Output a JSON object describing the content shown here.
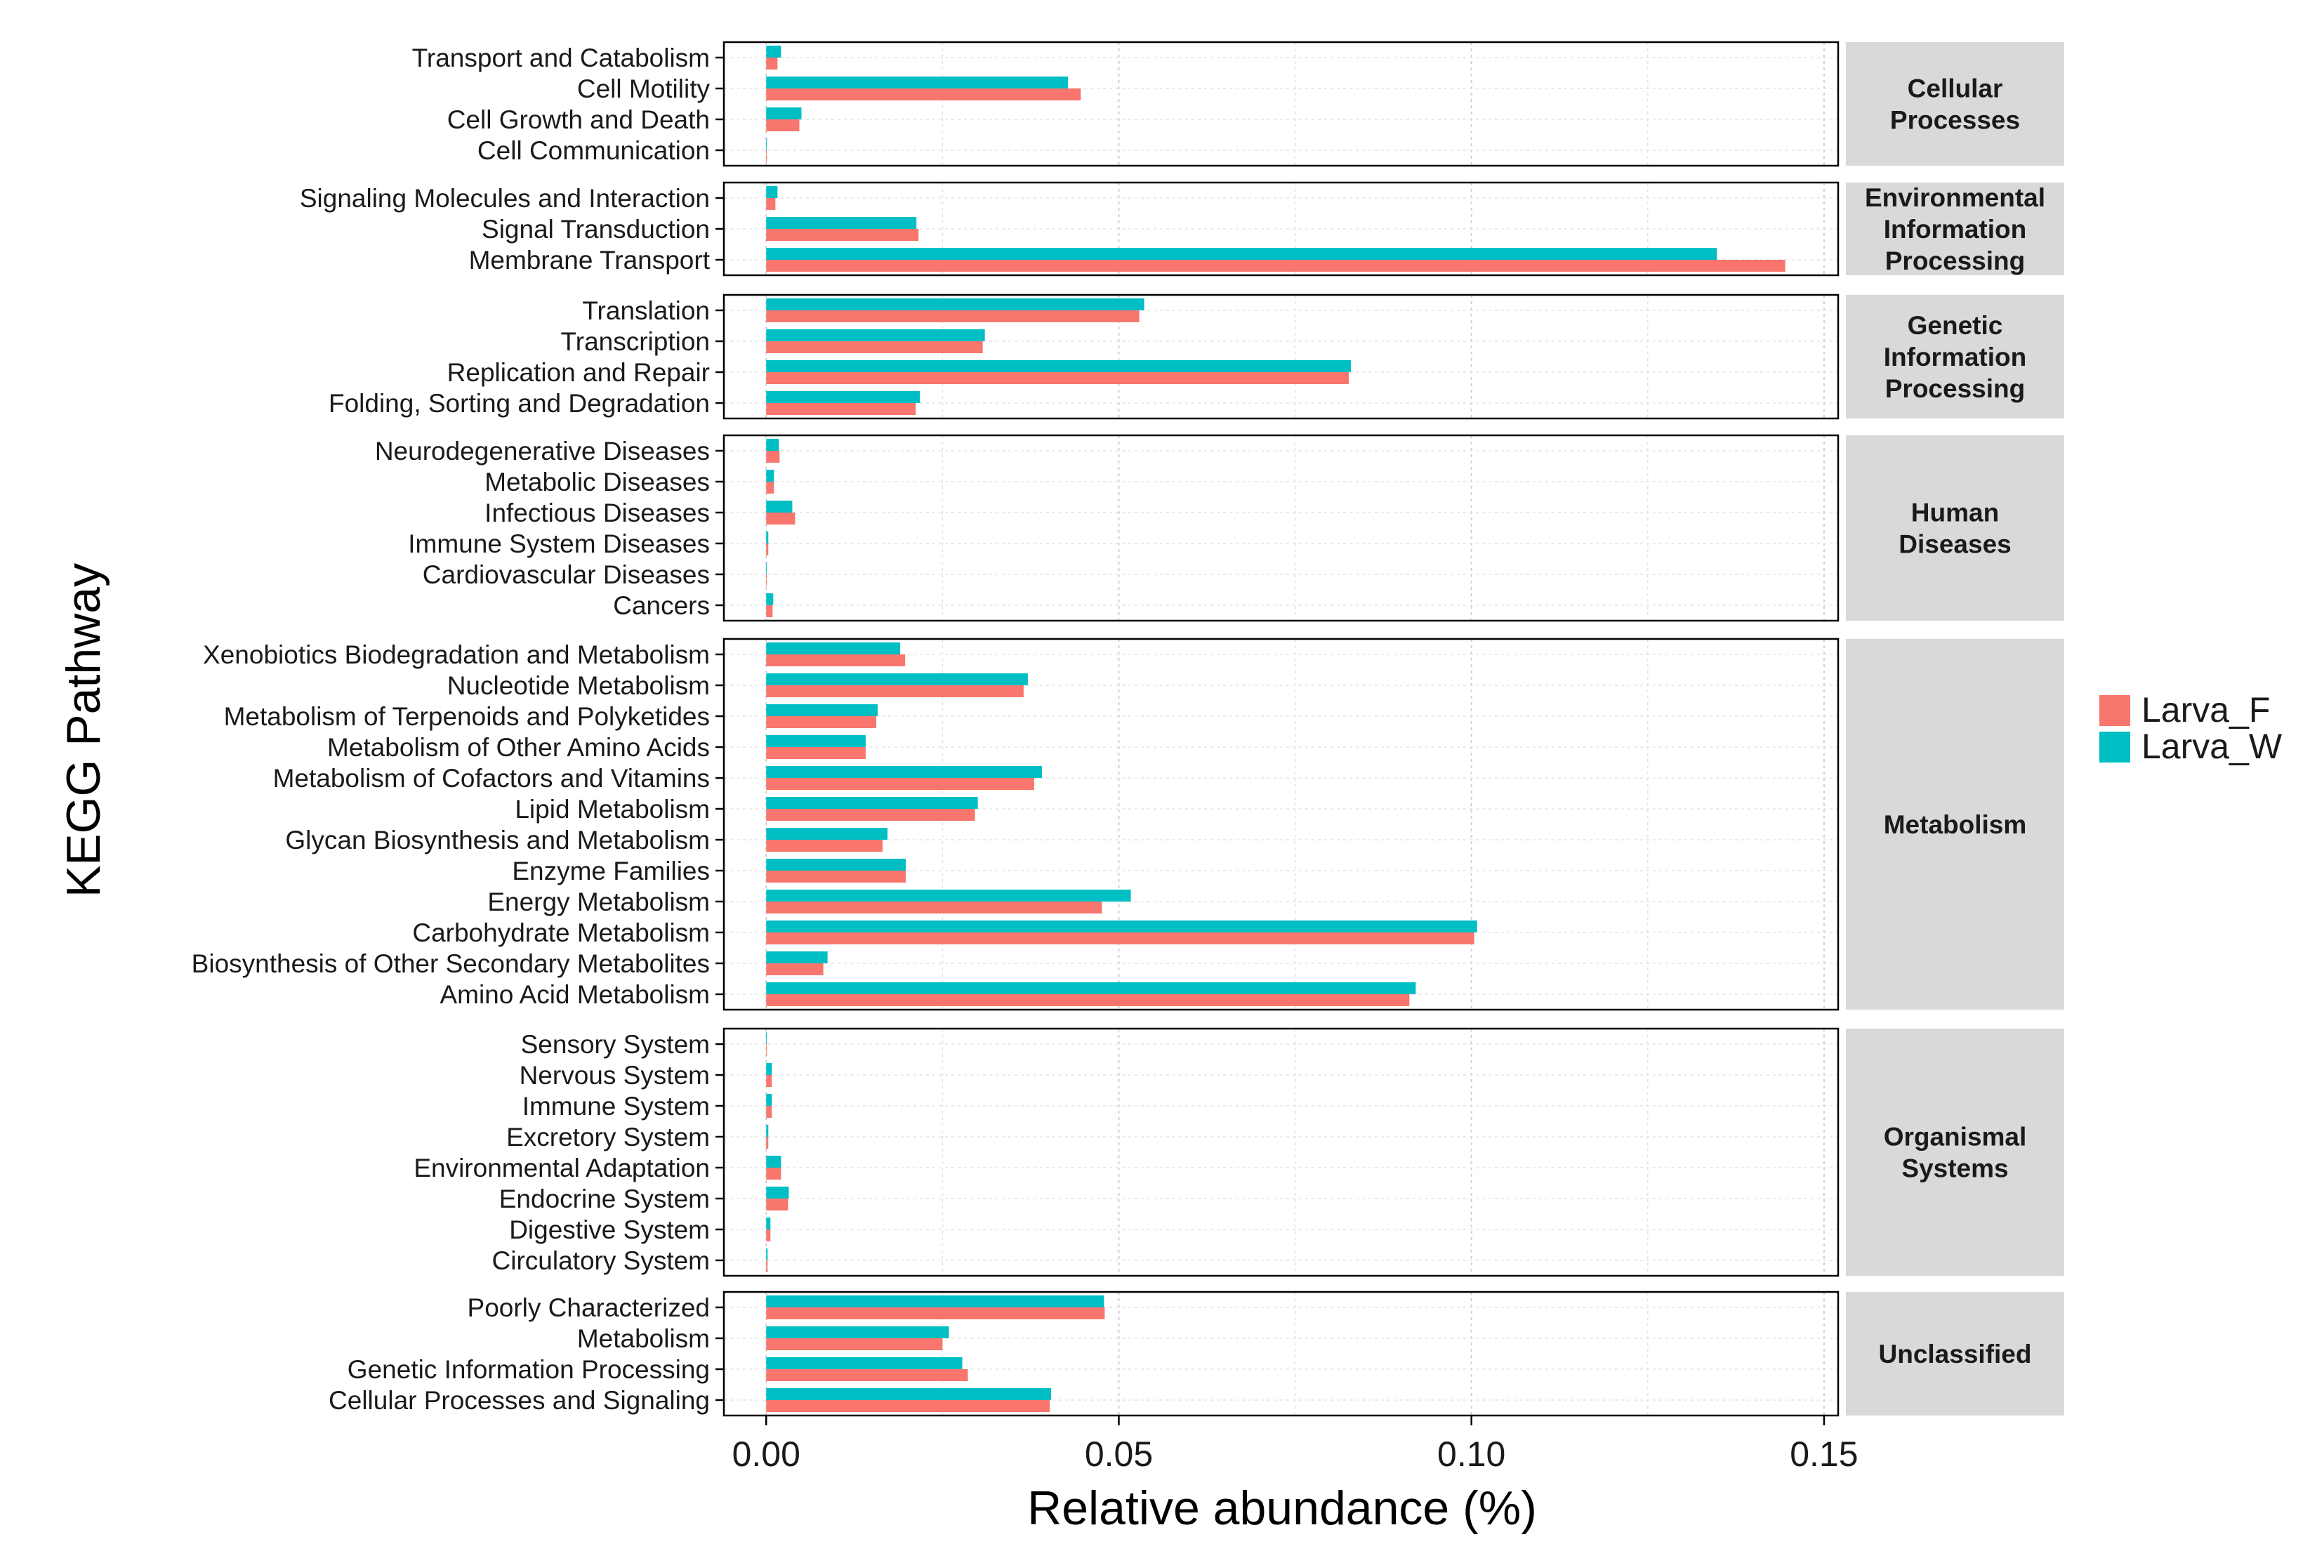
{
  "chart_data": {
    "type": "bar",
    "orientation": "horizontal",
    "xlabel": "Relative abundance (%)",
    "ylabel": "KEGG Pathway",
    "xlim": [
      -0.006,
      0.152
    ],
    "xticks": [
      0.0,
      0.05,
      0.1,
      0.15
    ],
    "xtick_labels": [
      "0.00",
      "0.05",
      "0.10",
      "0.15"
    ],
    "grid": true,
    "legend_position": "right",
    "legend": [
      {
        "name": "Larva_F",
        "color": "#F8766D"
      },
      {
        "name": "Larva_W",
        "color": "#00BFC4"
      }
    ],
    "panels": [
      {
        "name": "Cellular Processes",
        "strip_lines": [
          "Cellular",
          "Processes"
        ],
        "rows": [
          {
            "label": "Transport and Catabolism",
            "Larva_F": 0.0016,
            "Larva_W": 0.0021
          },
          {
            "label": "Cell Motility",
            "Larva_F": 0.0446,
            "Larva_W": 0.0428
          },
          {
            "label": "Cell Growth and Death",
            "Larva_F": 0.0047,
            "Larva_W": 0.005
          },
          {
            "label": "Cell Communication",
            "Larva_F": 0.0001,
            "Larva_W": 0.0001
          }
        ]
      },
      {
        "name": "Environmental Information Processing",
        "strip_lines": [
          "Environmental",
          "Information",
          "Processing"
        ],
        "rows": [
          {
            "label": "Signaling Molecules and Interaction",
            "Larva_F": 0.0013,
            "Larva_W": 0.0016
          },
          {
            "label": "Signal Transduction",
            "Larva_F": 0.0216,
            "Larva_W": 0.0213
          },
          {
            "label": "Membrane Transport",
            "Larva_F": 0.1445,
            "Larva_W": 0.1348
          }
        ]
      },
      {
        "name": "Genetic Information Processing",
        "strip_lines": [
          "Genetic",
          "Information",
          "Processing"
        ],
        "rows": [
          {
            "label": "Translation",
            "Larva_F": 0.0529,
            "Larva_W": 0.0536
          },
          {
            "label": "Transcription",
            "Larva_F": 0.0307,
            "Larva_W": 0.031
          },
          {
            "label": "Replication and Repair",
            "Larva_F": 0.0826,
            "Larva_W": 0.0829
          },
          {
            "label": "Folding, Sorting and Degradation",
            "Larva_F": 0.0212,
            "Larva_W": 0.0218
          }
        ]
      },
      {
        "name": "Human Diseases",
        "strip_lines": [
          "Human",
          "Diseases"
        ],
        "rows": [
          {
            "label": "Neurodegenerative Diseases",
            "Larva_F": 0.0019,
            "Larva_W": 0.0018
          },
          {
            "label": "Metabolic Diseases",
            "Larva_F": 0.0011,
            "Larva_W": 0.0011
          },
          {
            "label": "Infectious Diseases",
            "Larva_F": 0.0041,
            "Larva_W": 0.0037
          },
          {
            "label": "Immune System Diseases",
            "Larva_F": 0.0003,
            "Larva_W": 0.0003
          },
          {
            "label": "Cardiovascular Diseases",
            "Larva_F": 0.0001,
            "Larva_W": 0.0001
          },
          {
            "label": "Cancers",
            "Larva_F": 0.0009,
            "Larva_W": 0.001
          }
        ]
      },
      {
        "name": "Metabolism",
        "strip_lines": [
          "Metabolism"
        ],
        "rows": [
          {
            "label": "Xenobiotics Biodegradation and Metabolism",
            "Larva_F": 0.0197,
            "Larva_W": 0.019
          },
          {
            "label": "Nucleotide Metabolism",
            "Larva_F": 0.0365,
            "Larva_W": 0.0371
          },
          {
            "label": "Metabolism of Terpenoids and Polyketides",
            "Larva_F": 0.0156,
            "Larva_W": 0.0158
          },
          {
            "label": "Metabolism of Other Amino Acids",
            "Larva_F": 0.0141,
            "Larva_W": 0.0141
          },
          {
            "label": "Metabolism of Cofactors and Vitamins",
            "Larva_F": 0.038,
            "Larva_W": 0.0391
          },
          {
            "label": "Lipid Metabolism",
            "Larva_F": 0.0296,
            "Larva_W": 0.03
          },
          {
            "label": "Glycan Biosynthesis and Metabolism",
            "Larva_F": 0.0165,
            "Larva_W": 0.0172
          },
          {
            "label": "Enzyme Families",
            "Larva_F": 0.0198,
            "Larva_W": 0.0198
          },
          {
            "label": "Energy Metabolism",
            "Larva_F": 0.0476,
            "Larva_W": 0.0517
          },
          {
            "label": "Carbohydrate Metabolism",
            "Larva_F": 0.1004,
            "Larva_W": 0.1008
          },
          {
            "label": "Biosynthesis of Other Secondary Metabolites",
            "Larva_F": 0.0081,
            "Larva_W": 0.0087
          },
          {
            "label": "Amino Acid Metabolism",
            "Larva_F": 0.0912,
            "Larva_W": 0.0921
          }
        ]
      },
      {
        "name": "Organismal Systems",
        "strip_lines": [
          "Organismal",
          "Systems"
        ],
        "rows": [
          {
            "label": "Sensory System",
            "Larva_F": 0.0001,
            "Larva_W": 0.0001
          },
          {
            "label": "Nervous System",
            "Larva_F": 0.0008,
            "Larva_W": 0.0008
          },
          {
            "label": "Immune System",
            "Larva_F": 0.0008,
            "Larva_W": 0.0008
          },
          {
            "label": "Excretory System",
            "Larva_F": 0.0003,
            "Larva_W": 0.0003
          },
          {
            "label": "Environmental Adaptation",
            "Larva_F": 0.0021,
            "Larva_W": 0.0021
          },
          {
            "label": "Endocrine System",
            "Larva_F": 0.0031,
            "Larva_W": 0.0032
          },
          {
            "label": "Digestive System",
            "Larva_F": 0.0006,
            "Larva_W": 0.0006
          },
          {
            "label": "Circulatory System",
            "Larva_F": 0.0002,
            "Larva_W": 0.0002
          }
        ]
      },
      {
        "name": "Unclassified",
        "strip_lines": [
          "Unclassified"
        ],
        "rows": [
          {
            "label": "Poorly Characterized",
            "Larva_F": 0.048,
            "Larva_W": 0.0479
          },
          {
            "label": "Metabolism",
            "Larva_F": 0.025,
            "Larva_W": 0.0259
          },
          {
            "label": "Genetic Information Processing",
            "Larva_F": 0.0286,
            "Larva_W": 0.0278
          },
          {
            "label": "Cellular Processes and Signaling",
            "Larva_F": 0.0402,
            "Larva_W": 0.0404
          }
        ]
      }
    ]
  }
}
